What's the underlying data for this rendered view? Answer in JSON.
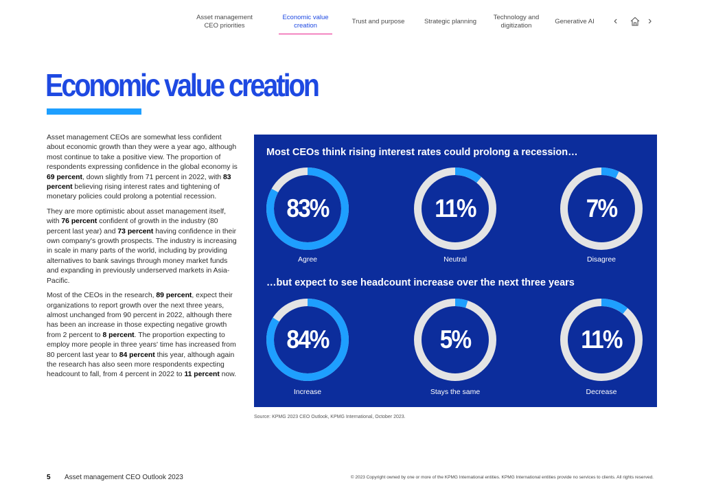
{
  "nav": {
    "items": [
      {
        "label_line1": "Asset management",
        "label_line2": "CEO priorities"
      },
      {
        "label_line1": "Economic value",
        "label_line2": "creation"
      },
      {
        "label_line1": "Trust and purpose",
        "label_line2": ""
      },
      {
        "label_line1": "Strategic planning",
        "label_line2": ""
      },
      {
        "label_line1": "Technology and",
        "label_line2": "digitization"
      },
      {
        "label_line1": "Generative AI",
        "label_line2": ""
      }
    ],
    "prev_icon": "chevron-left-icon",
    "home_icon": "home-icon",
    "next_icon": "chevron-right-icon"
  },
  "page": {
    "title": "Economic value creation"
  },
  "body": {
    "p1_a": "Asset management CEOs are somewhat less confident about economic growth than they were a year ago, although most continue to take a positive view. The proportion of respondents expressing confidence in the global economy is ",
    "p1_b1": "69 percent",
    "p1_c": ", down slightly from 71 percent in 2022, with ",
    "p1_b2": "83 percent",
    "p1_d": " believing rising interest rates and tightening of monetary policies could prolong a potential recession.",
    "p2_a": "They are more optimistic about asset management itself, with ",
    "p2_b1": "76 percent",
    "p2_c": " confident of growth in the industry (80 percent last year) and ",
    "p2_b2": "73 percent",
    "p2_d": " having confidence in their own company's growth prospects. The industry is increasing in scale in many parts of the world, including by providing alternatives to bank savings through money market funds and expanding in previously underserved markets in Asia-Pacific.",
    "p3_a": "Most of the CEOs in the research, ",
    "p3_b1": "89 percent",
    "p3_c": ", expect their organizations to report growth over the next three years, almost unchanged from 90 percent in 2022, although there has been an increase in those expecting negative growth from 2 percent to ",
    "p3_b2": "8 percent",
    "p3_d": ". The proportion expecting to employ more people in three years' time has increased from 80 percent last year to ",
    "p3_b3": "84 percent",
    "p3_e": " this year, although again the research has also seen more respondents expecting headcount to fall, from 4 percent in 2022 to ",
    "p3_b4": "11 percent",
    "p3_f": " now."
  },
  "panel": {
    "heading1": "Most CEOs think rising interest rates could prolong a recession…",
    "heading2": "…but expect to see headcount increase over the next three years",
    "row1": [
      {
        "value": "83%",
        "percent": 83,
        "label": "Agree"
      },
      {
        "value": "11%",
        "percent": 11,
        "label": "Neutral"
      },
      {
        "value": "7%",
        "percent": 7,
        "label": "Disagree"
      }
    ],
    "row2": [
      {
        "value": "84%",
        "percent": 84,
        "label": "Increase"
      },
      {
        "value": "5%",
        "percent": 5,
        "label": "Stays the same"
      },
      {
        "value": "11%",
        "percent": 11,
        "label": "Decrease"
      }
    ],
    "colors": {
      "background": "#0c2d9c",
      "fill": "#1e9fff",
      "track": "#e4e4e4"
    }
  },
  "source": "Source: KPMG 2023 CEO Outlook, KPMG International, October 2023.",
  "footer": {
    "page_number": "5",
    "doc_title": "Asset management CEO Outlook 2023",
    "copyright": "© 2023 Copyright owned by one or more of the KPMG International entities. KPMG International entities provide no services to clients. All rights reserved."
  },
  "colors": {
    "accent": "#1e49e2",
    "accent_light": "#1e9fff",
    "nav_underline": "#e91e8c"
  }
}
